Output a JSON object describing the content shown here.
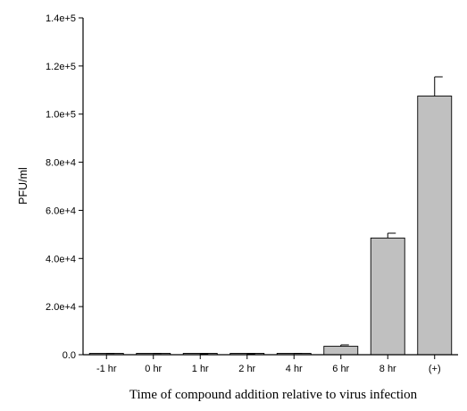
{
  "chart_data": {
    "type": "bar",
    "title": "",
    "xlabel": "Time of compound addition relative to virus infection",
    "ylabel": "PFU/ml",
    "categories": [
      "-1 hr",
      "0 hr",
      "1 hr",
      "2 hr",
      "4 hr",
      "6 hr",
      "8 hr",
      "(+)"
    ],
    "values": [
      300,
      300,
      200,
      200,
      250,
      3500,
      48500,
      107500
    ],
    "errors": [
      200,
      200,
      150,
      150,
      300,
      600,
      2000,
      8000
    ],
    "ylim": [
      0,
      140000
    ],
    "yticks": [
      0,
      20000,
      40000,
      60000,
      80000,
      100000,
      120000,
      140000
    ],
    "ytick_labels": [
      "0.0",
      "2.0e+4",
      "4.0e+4",
      "6.0e+4",
      "8.0e+4",
      "1.0e+5",
      "1.2e+5",
      "1.4e+5"
    ],
    "grid": false,
    "legend": "none",
    "colors": {
      "bar": "#c0c0c0",
      "axis": "#000000"
    }
  }
}
